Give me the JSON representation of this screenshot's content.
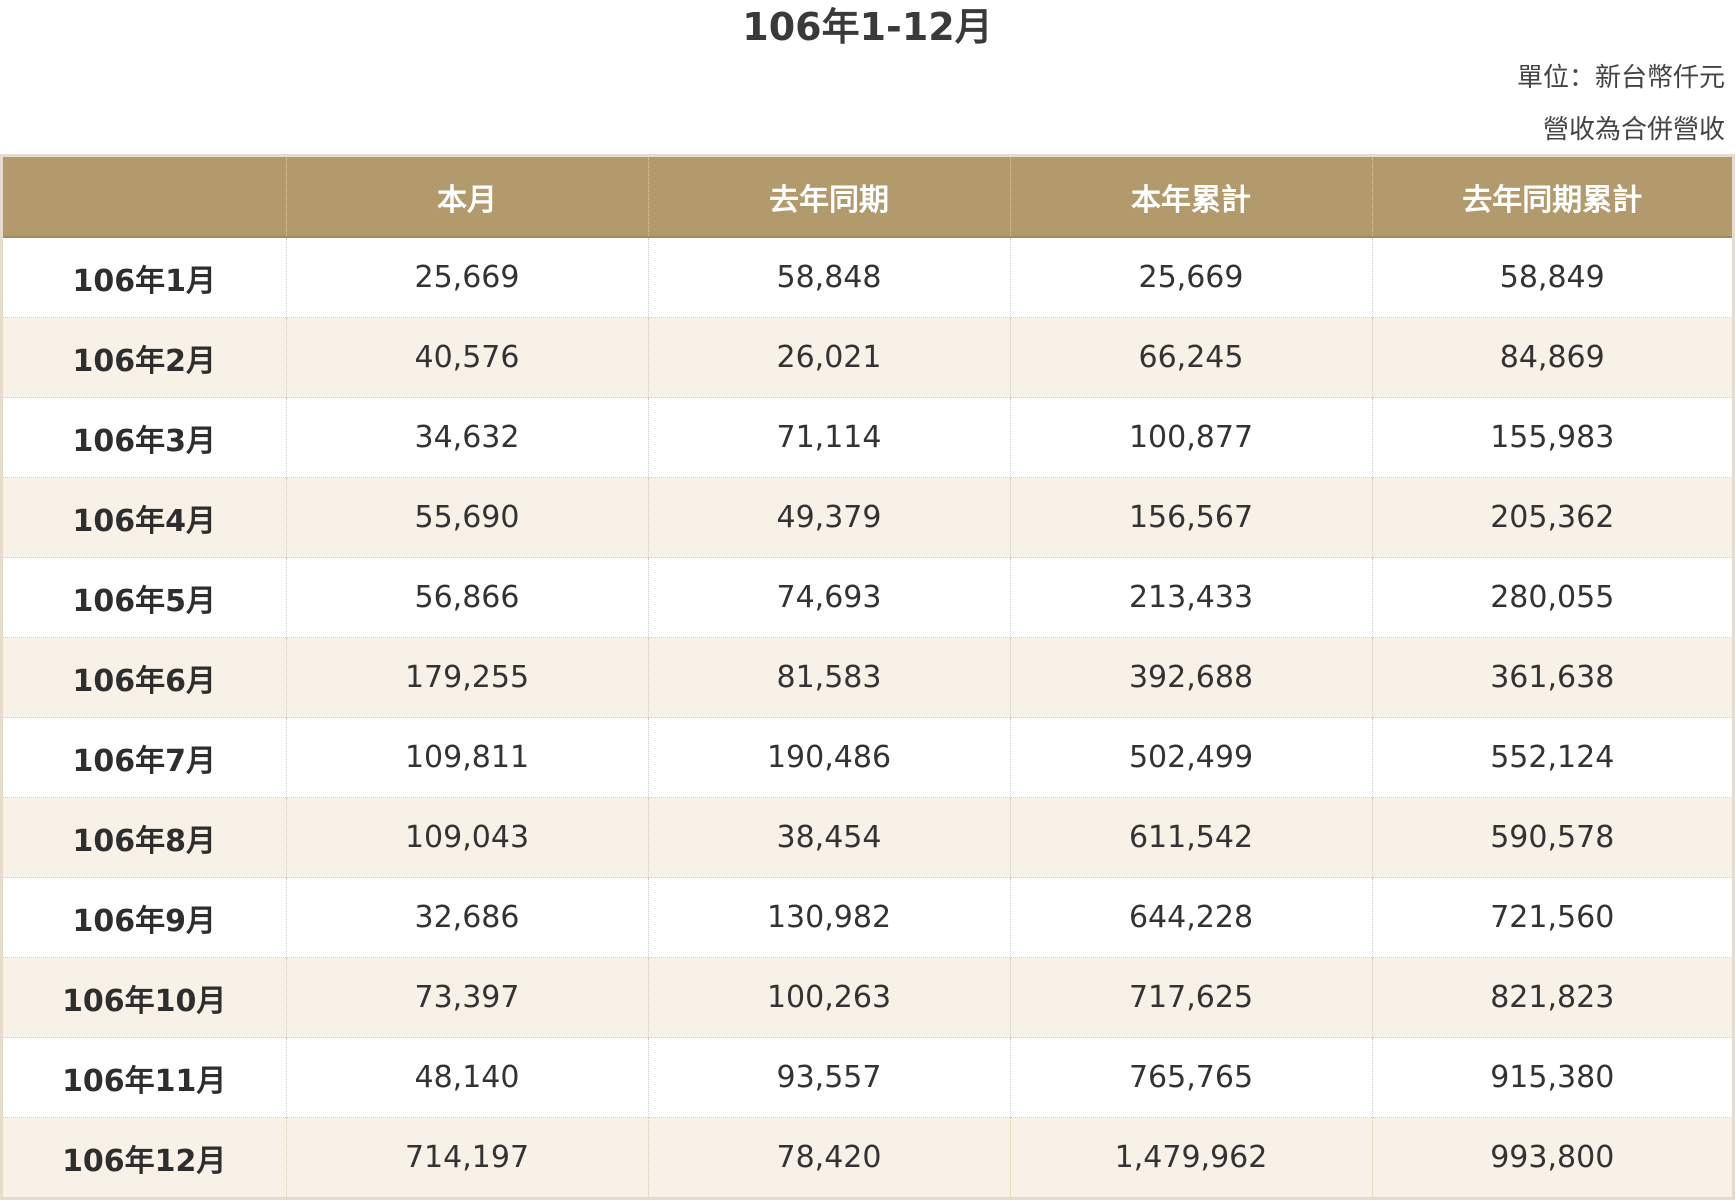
{
  "title": "106年1-12月",
  "notes": {
    "unit": "單位：新台幣仟元",
    "consolidated": "營收為合併營收"
  },
  "table": {
    "headers": [
      "",
      "本月",
      "去年同期",
      "本年累計",
      "去年同期累計"
    ],
    "rows": [
      [
        "106年1月",
        "25,669",
        "58,848",
        "25,669",
        "58,849"
      ],
      [
        "106年2月",
        "40,576",
        "26,021",
        "66,245",
        "84,869"
      ],
      [
        "106年3月",
        "34,632",
        "71,114",
        "100,877",
        "155,983"
      ],
      [
        "106年4月",
        "55,690",
        "49,379",
        "156,567",
        "205,362"
      ],
      [
        "106年5月",
        "56,866",
        "74,693",
        "213,433",
        "280,055"
      ],
      [
        "106年6月",
        "179,255",
        "81,583",
        "392,688",
        "361,638"
      ],
      [
        "106年7月",
        "109,811",
        "190,486",
        "502,499",
        "552,124"
      ],
      [
        "106年8月",
        "109,043",
        "38,454",
        "611,542",
        "590,578"
      ],
      [
        "106年9月",
        "32,686",
        "130,982",
        "644,228",
        "721,560"
      ],
      [
        "106年10月",
        "73,397",
        "100,263",
        "717,625",
        "821,823"
      ],
      [
        "106年11月",
        "48,140",
        "93,557",
        "765,765",
        "915,380"
      ],
      [
        "106年12月",
        "714,197",
        "78,420",
        "1,479,962",
        "993,800"
      ]
    ]
  },
  "colors": {
    "header_bg": "#b39a6d",
    "header_text": "#ffffff",
    "row_alt_bg": "#f8f1e7",
    "row_bg": "#ffffff"
  }
}
